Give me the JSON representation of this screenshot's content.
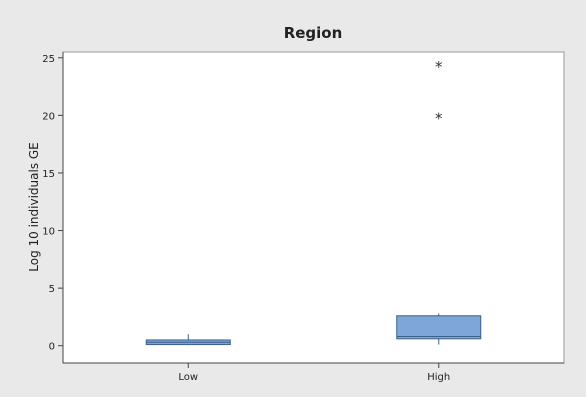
{
  "chart_data": {
    "type": "box",
    "title": "Region",
    "xlabel": "",
    "ylabel": "Log 10 individuals GE",
    "categories": [
      "Low",
      "High"
    ],
    "ylim": [
      -1.5,
      25.5
    ],
    "yticks": [
      0,
      5,
      10,
      15,
      20,
      25
    ],
    "boxes": [
      {
        "category": "Low",
        "whisker_low": 0.05,
        "q1": 0.1,
        "median": 0.3,
        "q3": 0.5,
        "whisker_high": 1.0,
        "outliers": []
      },
      {
        "category": "High",
        "whisker_low": 0.1,
        "q1": 0.6,
        "median": 0.8,
        "q3": 2.6,
        "whisker_high": 2.8,
        "outliers": [
          19.8,
          24.3
        ]
      }
    ],
    "outlier_marker": "*",
    "grid": false,
    "legend": "none",
    "colors": {
      "background": "#e9e9e9",
      "plot_bg": "#ffffff",
      "box_fill": "#7ea6d8",
      "box_stroke": "#3c5f8a",
      "axis": "#444444",
      "text": "#222222"
    }
  }
}
